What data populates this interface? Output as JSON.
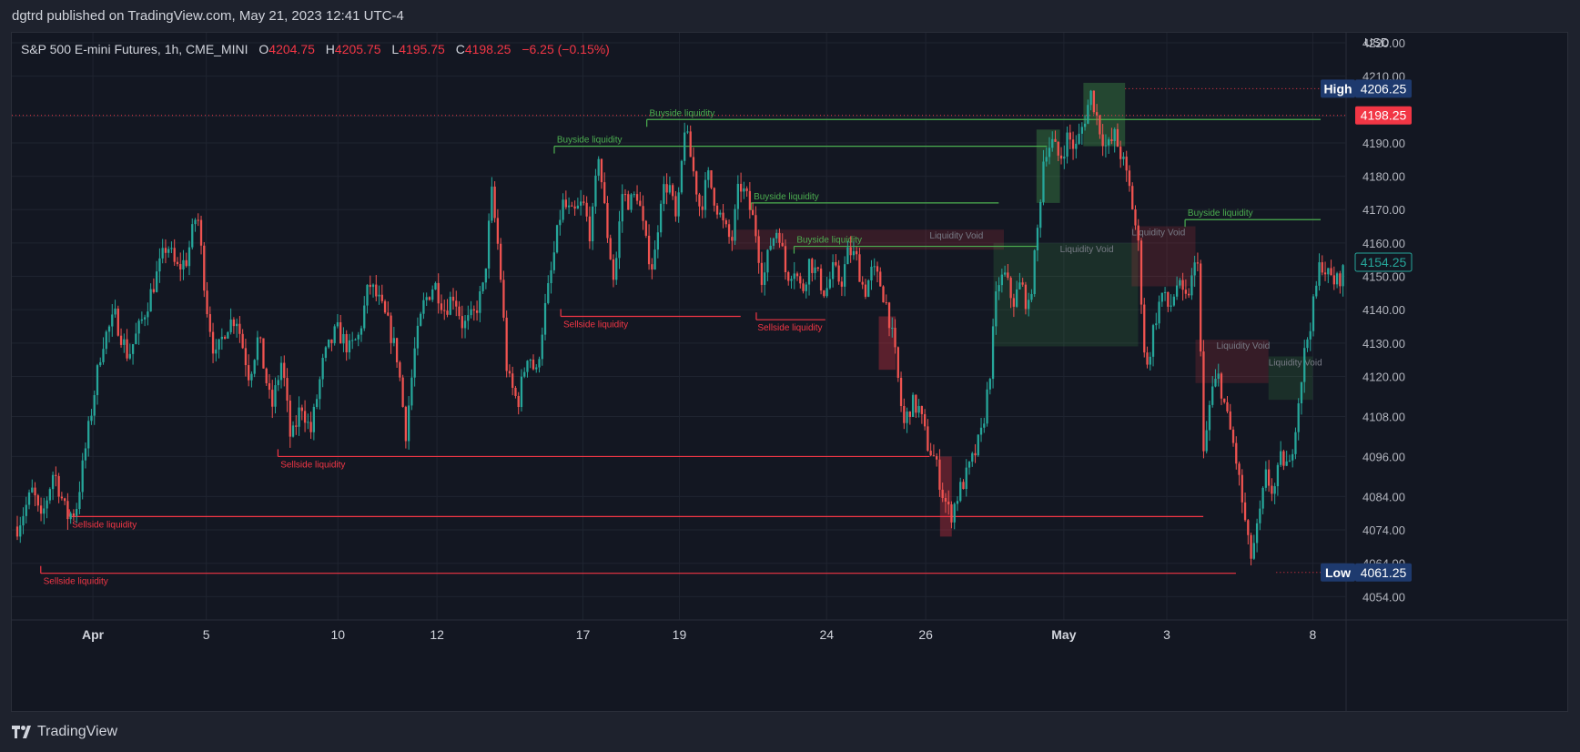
{
  "header": {
    "publish_line": "dgtrd published on TradingView.com, May 21, 2023 12:41 UTC-4"
  },
  "legend": {
    "symbol": "S&P 500 E-mini Futures, 1h, CME_MINI",
    "o_label": "O",
    "o_value": "4204.75",
    "h_label": "H",
    "h_value": "4205.75",
    "l_label": "L",
    "l_value": "4195.75",
    "c_label": "C",
    "c_value": "4198.25",
    "change": "−6.25 (−0.15%)"
  },
  "footer": {
    "brand": "TradingView"
  },
  "colors": {
    "background": "#131722",
    "frame": "#1e222d",
    "grid": "#1f2430",
    "up": "#26a69a",
    "down": "#ef5350",
    "buyside": "#4caf50",
    "sellside": "#f23645",
    "void_text": "#787b86",
    "high_low_badge": "#1e3a6e",
    "price_badge": "#f23645"
  },
  "chart_data": {
    "type": "candlestick",
    "title": "",
    "y_axis": {
      "unit_label": "USD",
      "ylim": [
        4047,
        4223
      ],
      "ticks": [
        "4220.00",
        "4210.00",
        "4198.00",
        "4190.00",
        "4180.00",
        "4170.00",
        "4160.00",
        "4150.00",
        "4140.00",
        "4130.00",
        "4120.00",
        "4108.00",
        "4096.00",
        "4084.00",
        "4074.00",
        "4064.00",
        "4054.00"
      ]
    },
    "x_axis": {
      "tick_labels": [
        {
          "label": "Apr",
          "pos": 0.058,
          "bold": true
        },
        {
          "label": "5",
          "pos": 0.145
        },
        {
          "label": "10",
          "pos": 0.246
        },
        {
          "label": "12",
          "pos": 0.322
        },
        {
          "label": "17",
          "pos": 0.434
        },
        {
          "label": "19",
          "pos": 0.508
        },
        {
          "label": "24",
          "pos": 0.621
        },
        {
          "label": "26",
          "pos": 0.697
        },
        {
          "label": "May",
          "pos": 0.803,
          "bold": true
        },
        {
          "label": "3",
          "pos": 0.882
        },
        {
          "label": "8",
          "pos": 0.994
        }
      ]
    },
    "price_path": [
      [
        0.0,
        4075
      ],
      [
        0.012,
        4086
      ],
      [
        0.018,
        4076
      ],
      [
        0.028,
        4092
      ],
      [
        0.038,
        4078
      ],
      [
        0.045,
        4080
      ],
      [
        0.055,
        4105
      ],
      [
        0.065,
        4130
      ],
      [
        0.075,
        4138
      ],
      [
        0.085,
        4126
      ],
      [
        0.095,
        4136
      ],
      [
        0.105,
        4148
      ],
      [
        0.115,
        4160
      ],
      [
        0.122,
        4152
      ],
      [
        0.13,
        4155
      ],
      [
        0.138,
        4170
      ],
      [
        0.145,
        4142
      ],
      [
        0.152,
        4125
      ],
      [
        0.16,
        4135
      ],
      [
        0.168,
        4138
      ],
      [
        0.178,
        4120
      ],
      [
        0.185,
        4132
      ],
      [
        0.195,
        4110
      ],
      [
        0.203,
        4125
      ],
      [
        0.21,
        4100
      ],
      [
        0.218,
        4112
      ],
      [
        0.225,
        4103
      ],
      [
        0.235,
        4125
      ],
      [
        0.245,
        4134
      ],
      [
        0.255,
        4128
      ],
      [
        0.262,
        4132
      ],
      [
        0.27,
        4148
      ],
      [
        0.278,
        4142
      ],
      [
        0.285,
        4135
      ],
      [
        0.292,
        4125
      ],
      [
        0.298,
        4103
      ],
      [
        0.305,
        4128
      ],
      [
        0.312,
        4142
      ],
      [
        0.32,
        4148
      ],
      [
        0.328,
        4140
      ],
      [
        0.335,
        4145
      ],
      [
        0.342,
        4135
      ],
      [
        0.35,
        4138
      ],
      [
        0.358,
        4147
      ],
      [
        0.364,
        4175
      ],
      [
        0.37,
        4155
      ],
      [
        0.376,
        4120
      ],
      [
        0.384,
        4112
      ],
      [
        0.392,
        4128
      ],
      [
        0.398,
        4120
      ],
      [
        0.404,
        4138
      ],
      [
        0.41,
        4152
      ],
      [
        0.418,
        4172
      ],
      [
        0.426,
        4168
      ],
      [
        0.434,
        4172
      ],
      [
        0.44,
        4162
      ],
      [
        0.446,
        4187
      ],
      [
        0.452,
        4165
      ],
      [
        0.458,
        4148
      ],
      [
        0.464,
        4175
      ],
      [
        0.47,
        4172
      ],
      [
        0.476,
        4175
      ],
      [
        0.482,
        4160
      ],
      [
        0.488,
        4152
      ],
      [
        0.494,
        4175
      ],
      [
        0.5,
        4178
      ],
      [
        0.506,
        4165
      ],
      [
        0.512,
        4195
      ],
      [
        0.518,
        4183
      ],
      [
        0.524,
        4170
      ],
      [
        0.53,
        4180
      ],
      [
        0.536,
        4172
      ],
      [
        0.542,
        4165
      ],
      [
        0.548,
        4160
      ],
      [
        0.554,
        4178
      ],
      [
        0.56,
        4173
      ],
      [
        0.566,
        4165
      ],
      [
        0.572,
        4148
      ],
      [
        0.578,
        4160
      ],
      [
        0.584,
        4165
      ],
      [
        0.59,
        4150
      ],
      [
        0.596,
        4153
      ],
      [
        0.602,
        4145
      ],
      [
        0.608,
        4155
      ],
      [
        0.614,
        4150
      ],
      [
        0.62,
        4145
      ],
      [
        0.626,
        4152
      ],
      [
        0.632,
        4148
      ],
      [
        0.638,
        4158
      ],
      [
        0.644,
        4155
      ],
      [
        0.65,
        4145
      ],
      [
        0.656,
        4152
      ],
      [
        0.662,
        4148
      ],
      [
        0.668,
        4140
      ],
      [
        0.674,
        4125
      ],
      [
        0.68,
        4105
      ],
      [
        0.686,
        4112
      ],
      [
        0.692,
        4110
      ],
      [
        0.698,
        4100
      ],
      [
        0.704,
        4095
      ],
      [
        0.71,
        4085
      ],
      [
        0.716,
        4078
      ],
      [
        0.722,
        4085
      ],
      [
        0.728,
        4090
      ],
      [
        0.734,
        4096
      ],
      [
        0.74,
        4103
      ],
      [
        0.746,
        4120
      ],
      [
        0.752,
        4148
      ],
      [
        0.758,
        4150
      ],
      [
        0.764,
        4142
      ],
      [
        0.77,
        4148
      ],
      [
        0.776,
        4140
      ],
      [
        0.782,
        4160
      ],
      [
        0.788,
        4188
      ],
      [
        0.794,
        4190
      ],
      [
        0.8,
        4185
      ],
      [
        0.806,
        4192
      ],
      [
        0.812,
        4188
      ],
      [
        0.818,
        4196
      ],
      [
        0.824,
        4205
      ],
      [
        0.83,
        4195
      ],
      [
        0.836,
        4188
      ],
      [
        0.842,
        4192
      ],
      [
        0.848,
        4185
      ],
      [
        0.854,
        4175
      ],
      [
        0.86,
        4160
      ],
      [
        0.866,
        4120
      ],
      [
        0.872,
        4135
      ],
      [
        0.878,
        4145
      ],
      [
        0.884,
        4140
      ],
      [
        0.89,
        4148
      ],
      [
        0.896,
        4142
      ],
      [
        0.902,
        4150
      ],
      [
        0.906,
        4157
      ],
      [
        0.91,
        4095
      ],
      [
        0.916,
        4115
      ],
      [
        0.922,
        4120
      ],
      [
        0.928,
        4108
      ],
      [
        0.934,
        4098
      ],
      [
        0.94,
        4082
      ],
      [
        0.946,
        4065
      ],
      [
        0.952,
        4075
      ],
      [
        0.958,
        4090
      ],
      [
        0.964,
        4085
      ],
      [
        0.97,
        4096
      ],
      [
        0.976,
        4092
      ],
      [
        0.982,
        4110
      ],
      [
        0.988,
        4128
      ],
      [
        0.994,
        4140
      ],
      [
        1.0,
        4155
      ],
      [
        1.006,
        4150
      ],
      [
        1.012,
        4148
      ],
      [
        1.018,
        4152
      ],
      [
        1.024,
        4155
      ]
    ],
    "buyside_levels": [
      {
        "label": "Buyside liquidity",
        "price": 4197,
        "x1": 0.483,
        "x2": 1.0,
        "label_x": 0.485
      },
      {
        "label": "Buyside liquidity",
        "price": 4189,
        "x1": 0.412,
        "x2": 0.79,
        "label_x": 0.414
      },
      {
        "label": "Buyside liquidity",
        "price": 4172,
        "x1": 0.563,
        "x2": 0.753,
        "label_x": 0.565
      },
      {
        "label": "Buyside liquidity",
        "price": 4159,
        "x1": 0.596,
        "x2": 0.783,
        "label_x": 0.598
      },
      {
        "label": "Buyside liquidity",
        "price": 4167,
        "x1": 0.896,
        "x2": 1.0,
        "label_x": 0.898
      }
    ],
    "sellside_levels": [
      {
        "label": "Sellside liquidity",
        "price": 4138,
        "x1": 0.417,
        "x2": 0.555,
        "label_x": 0.419
      },
      {
        "label": "Sellside liquidity",
        "price": 4137,
        "x1": 0.567,
        "x2": 0.62,
        "label_x": 0.568
      },
      {
        "label": "Sellside liquidity",
        "price": 4096,
        "x1": 0.2,
        "x2": 0.7,
        "label_x": 0.202
      },
      {
        "label": "Sellside liquidity",
        "price": 4078,
        "x1": 0.04,
        "x2": 0.91,
        "label_x": 0.042
      },
      {
        "label": "Sellside liquidity",
        "price": 4061,
        "x1": 0.018,
        "x2": 0.935,
        "label_x": 0.02
      }
    ],
    "liquidity_voids": [
      {
        "label": "Liquidity Void",
        "side": "sell",
        "x1": 0.548,
        "x2": 0.757,
        "y1": 4164,
        "y2": 4158,
        "label_x": 0.7
      },
      {
        "label": "Liquidity Void",
        "side": "buy",
        "x1": 0.749,
        "x2": 0.86,
        "y1": 4160,
        "y2": 4129,
        "label_x": 0.8
      },
      {
        "label": "Liquidity Void",
        "side": "sell",
        "x1": 0.855,
        "x2": 0.904,
        "y1": 4165,
        "y2": 4147,
        "label_x": 0.855
      },
      {
        "label": "Liquidity Void",
        "side": "sell",
        "x1": 0.904,
        "x2": 0.96,
        "y1": 4131,
        "y2": 4118,
        "label_x": 0.92
      },
      {
        "label": "Liquidity Void",
        "side": "buy",
        "x1": 0.96,
        "x2": 0.994,
        "y1": 4126,
        "y2": 4113,
        "label_x": 0.96
      }
    ],
    "boxes": [
      {
        "side": "sell",
        "x1": 0.661,
        "x2": 0.674,
        "y1": 4138,
        "y2": 4122
      },
      {
        "side": "sell",
        "x1": 0.708,
        "x2": 0.717,
        "y1": 4096,
        "y2": 4072
      },
      {
        "side": "buy",
        "x1": 0.782,
        "x2": 0.8,
        "y1": 4194,
        "y2": 4172
      },
      {
        "side": "buy",
        "x1": 0.818,
        "x2": 0.85,
        "y1": 4208,
        "y2": 4189
      }
    ],
    "price_labels": [
      {
        "kind": "high",
        "caption": "High",
        "value": "4206.25",
        "price": 4206.25
      },
      {
        "kind": "last",
        "caption": "",
        "value": "4198.25",
        "price": 4198.25
      },
      {
        "kind": "current",
        "caption": "",
        "value": "4154.25",
        "price": 4154.25
      },
      {
        "kind": "low",
        "caption": "Low",
        "value": "4061.25",
        "price": 4061.25
      }
    ]
  }
}
